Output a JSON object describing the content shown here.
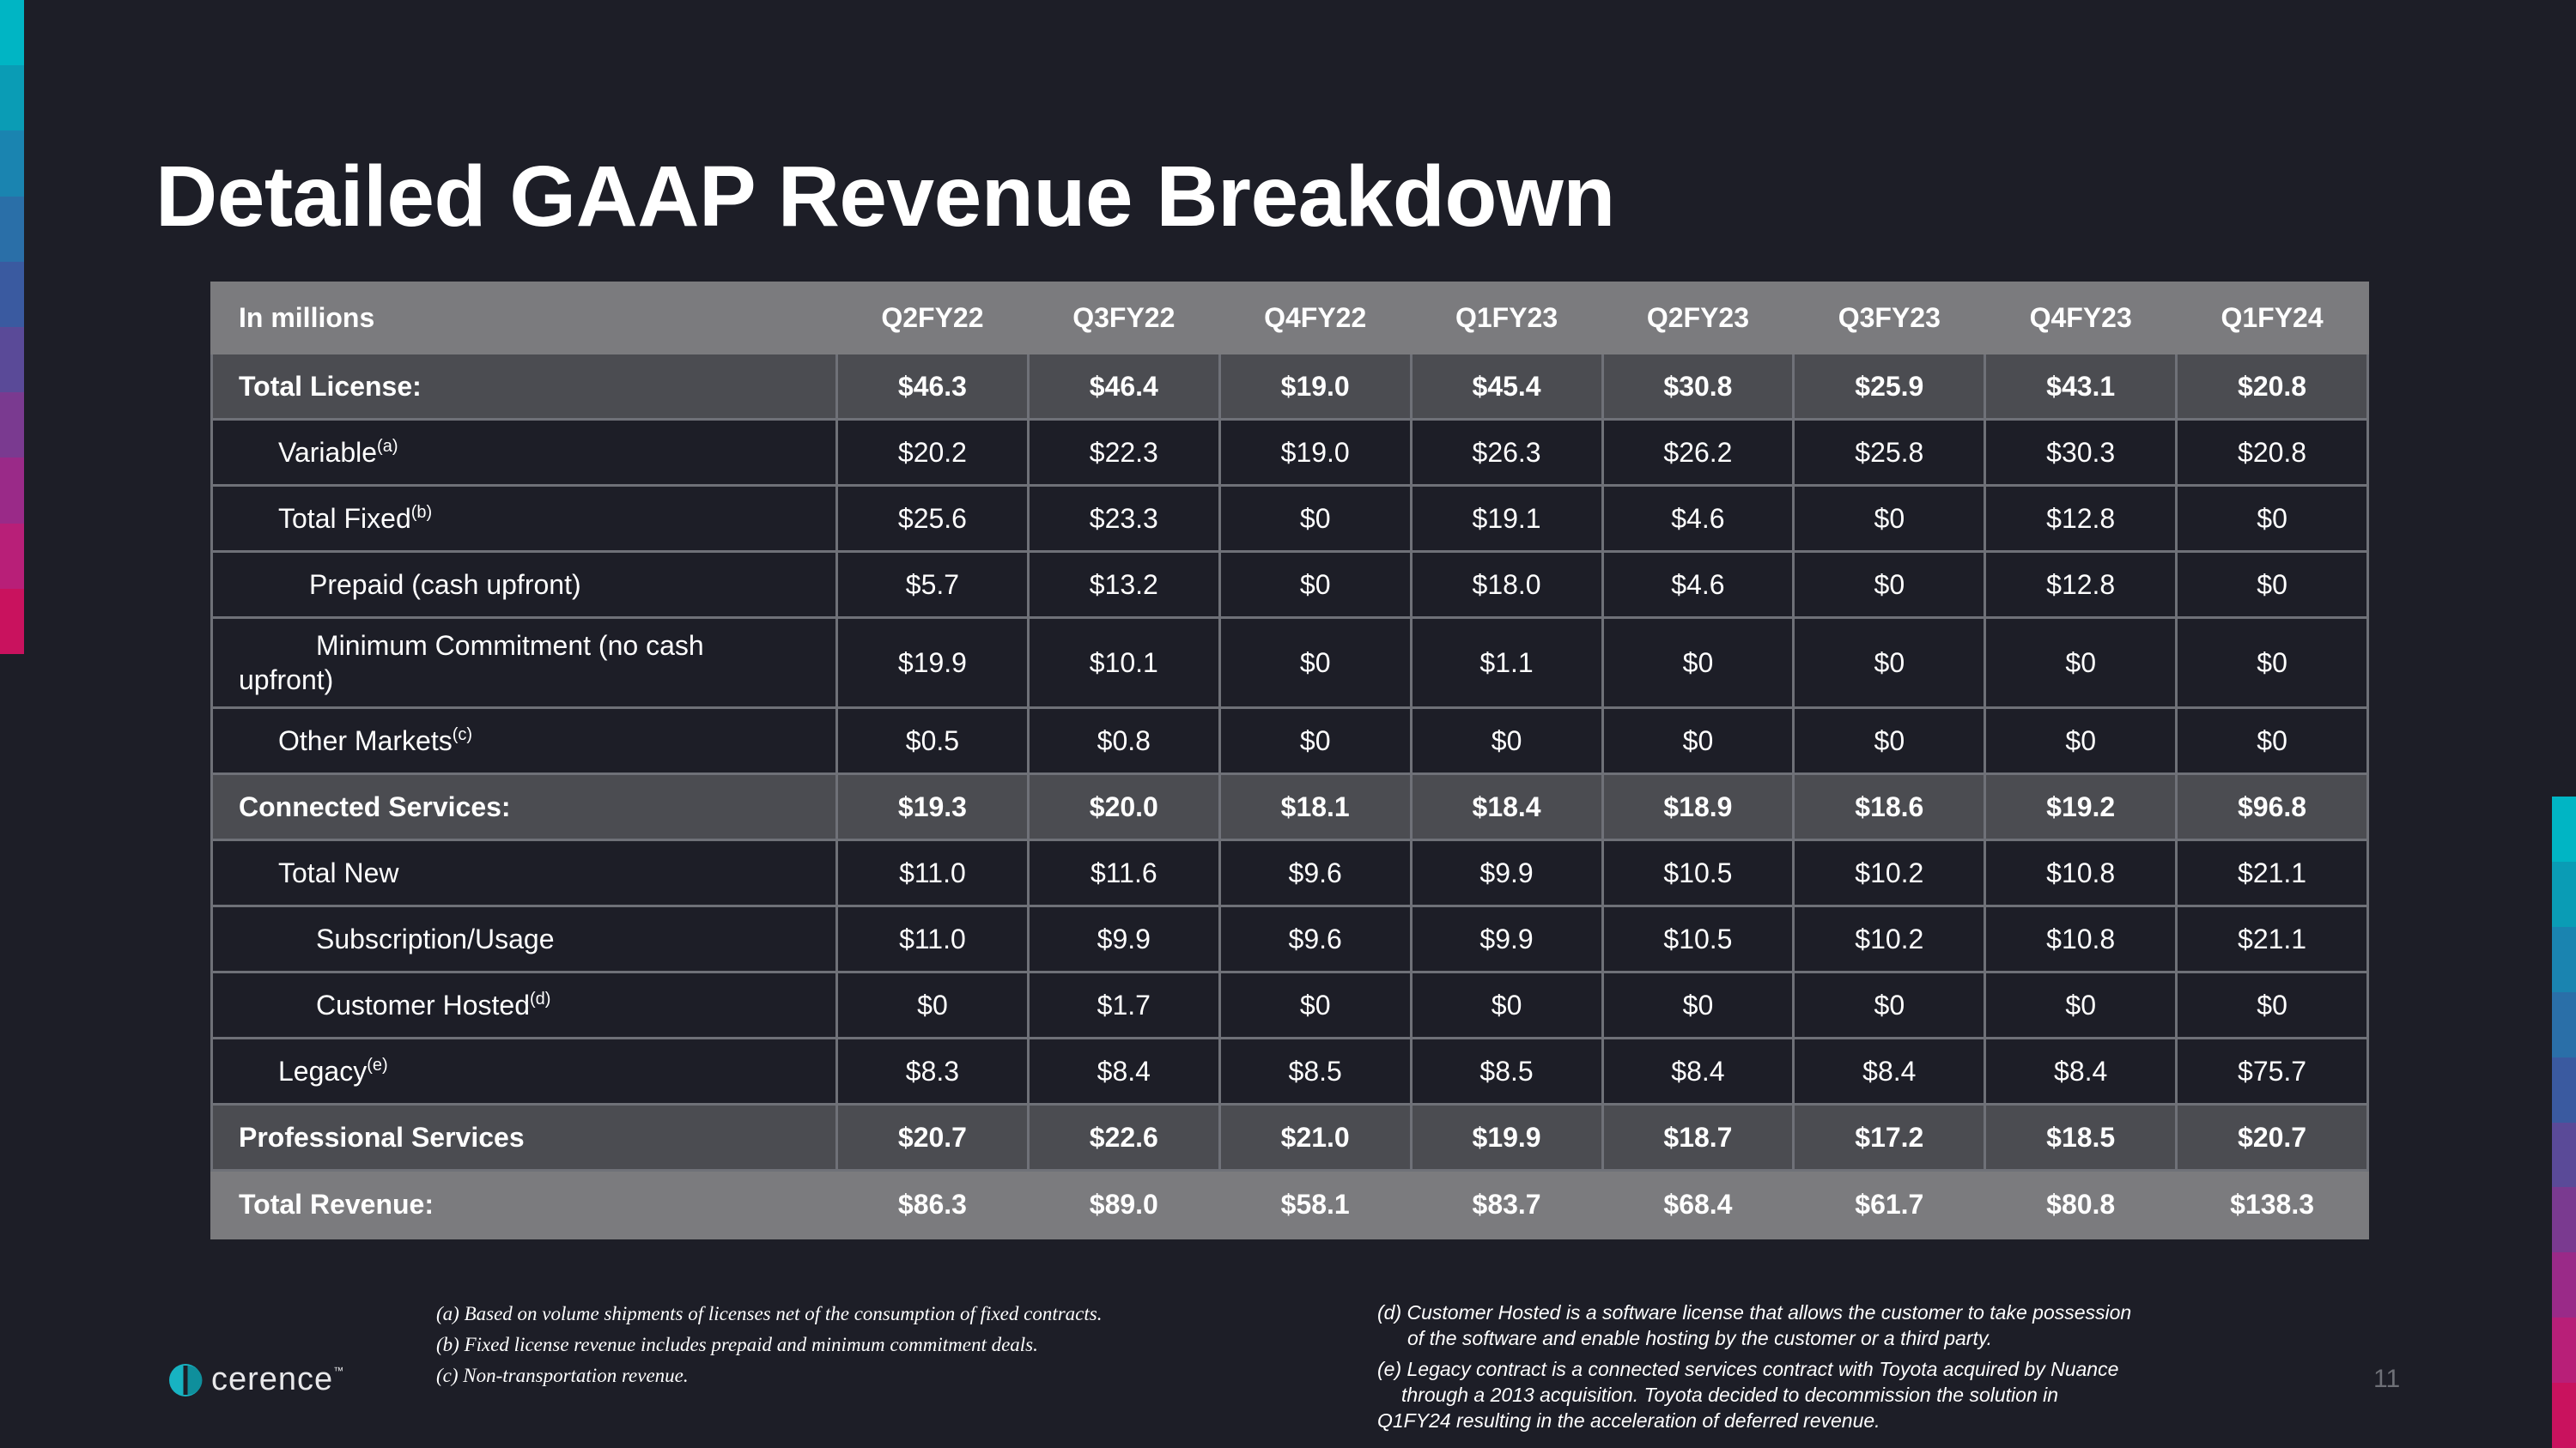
{
  "slide": {
    "title": "Detailed GAAP Revenue Breakdown",
    "page_number": "11",
    "accent_colors": [
      "#00b5c4",
      "#0a9cb5",
      "#1a84b0",
      "#2a6fa8",
      "#3a5aa0",
      "#5a4a98",
      "#7a3a90",
      "#9a2a88",
      "#b81f78",
      "#c9125e"
    ]
  },
  "table": {
    "header_label": "In millions",
    "columns": [
      "Q2FY22",
      "Q3FY22",
      "Q4FY22",
      "Q1FY23",
      "Q2FY23",
      "Q3FY23",
      "Q4FY23",
      "Q1FY24"
    ],
    "rows": [
      {
        "label": "Total License:",
        "values": [
          "$46.3",
          "$46.4",
          "$19.0",
          "$45.4",
          "$30.8",
          "$25.9",
          "$43.1",
          "$20.8"
        ]
      },
      {
        "label": "Variable",
        "note": "(a)",
        "values": [
          "$20.2",
          "$22.3",
          "$19.0",
          "$26.3",
          "$26.2",
          "$25.8",
          "$30.3",
          "$20.8"
        ]
      },
      {
        "label": "Total Fixed",
        "note": "(b)",
        "values": [
          "$25.6",
          "$23.3",
          "$0",
          "$19.1",
          "$4.6",
          "$0",
          "$12.8",
          "$0"
        ]
      },
      {
        "label": "Prepaid (cash upfront)",
        "values": [
          "$5.7",
          "$13.2",
          "$0",
          "$18.0",
          "$4.6",
          "$0",
          "$12.8",
          "$0"
        ]
      },
      {
        "label": "Minimum Commitment (no cash upfront)",
        "values": [
          "$19.9",
          "$10.1",
          "$0",
          "$1.1",
          "$0",
          "$0",
          "$0",
          "$0"
        ]
      },
      {
        "label": "Other Markets",
        "note": "(c)",
        "values": [
          "$0.5",
          "$0.8",
          "$0",
          "$0",
          "$0",
          "$0",
          "$0",
          "$0"
        ]
      },
      {
        "label": "Connected Services:",
        "values": [
          "$19.3",
          "$20.0",
          "$18.1",
          "$18.4",
          "$18.9",
          "$18.6",
          "$19.2",
          "$96.8"
        ]
      },
      {
        "label": "Total New",
        "values": [
          "$11.0",
          "$11.6",
          "$9.6",
          "$9.9",
          "$10.5",
          "$10.2",
          "$10.8",
          "$21.1"
        ]
      },
      {
        "label": "Subscription/Usage",
        "values": [
          "$11.0",
          "$9.9",
          "$9.6",
          "$9.9",
          "$10.5",
          "$10.2",
          "$10.8",
          "$21.1"
        ]
      },
      {
        "label": "Customer Hosted",
        "note": "(d)",
        "values": [
          "$0",
          "$1.7",
          "$0",
          "$0",
          "$0",
          "$0",
          "$0",
          "$0"
        ]
      },
      {
        "label": "Legacy",
        "note": "(e)",
        "values": [
          "$8.3",
          "$8.4",
          "$8.5",
          "$8.5",
          "$8.4",
          "$8.4",
          "$8.4",
          "$75.7"
        ]
      },
      {
        "label": "Professional Services",
        "values": [
          "$20.7",
          "$22.6",
          "$21.0",
          "$19.9",
          "$18.7",
          "$17.2",
          "$18.5",
          "$20.7"
        ]
      },
      {
        "label": "Total Revenue:",
        "values": [
          "$86.3",
          "$89.0",
          "$58.1",
          "$83.7",
          "$68.4",
          "$61.7",
          "$80.8",
          "$138.3"
        ]
      }
    ]
  },
  "footnotes": {
    "a": "(a) Based on volume shipments of licenses net of  the consumption of fixed contracts.",
    "b": "(b) Fixed license revenue includes prepaid and minimum commitment deals.",
    "c": "(c) Non-transportation revenue.",
    "d_line1": "(d) Customer Hosted is a software license that allows the customer to take possession",
    "d_line2": "of the software and enable hosting by the customer or a third party.",
    "e_line1": "(e) Legacy contract is a connected services contract with Toyota acquired by Nuance",
    "e_line2": "through a 2013 acquisition. Toyota decided to decommission the solution in",
    "e_line3": "Q1FY24 resulting in the acceleration of deferred revenue."
  },
  "logo": {
    "text": "cerence",
    "mark": "™",
    "icon": "cerence-logo-icon",
    "color": "#17b3c2"
  }
}
